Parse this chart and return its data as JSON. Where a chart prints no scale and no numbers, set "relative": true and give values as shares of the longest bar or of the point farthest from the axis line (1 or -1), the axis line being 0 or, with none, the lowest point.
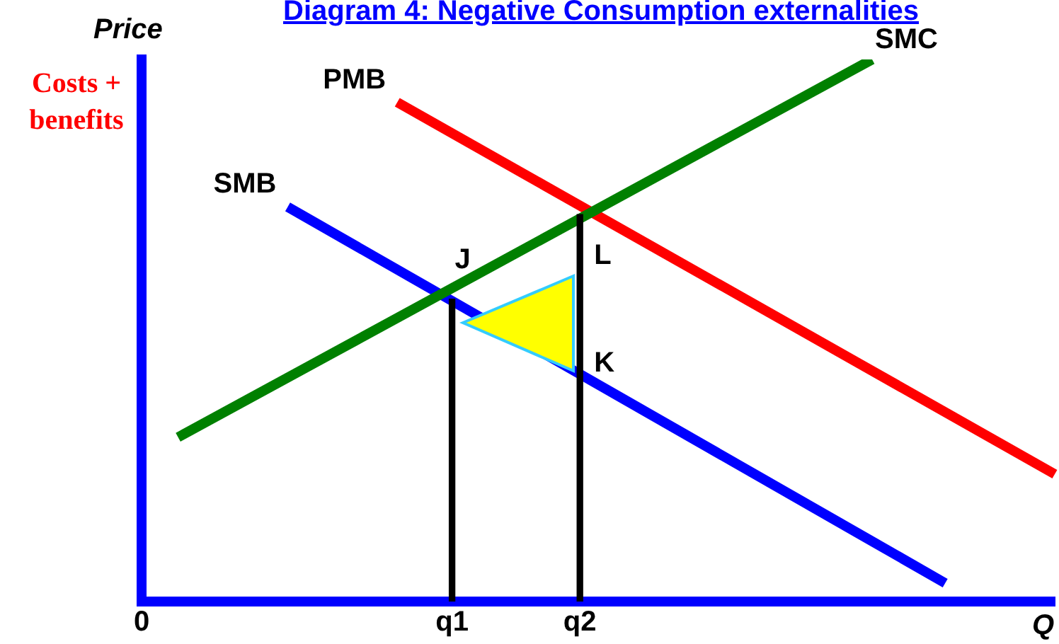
{
  "chart_data": {
    "type": "line",
    "title": "Diagram 4: Negative Consumption externalities",
    "ylabel": "Price",
    "xlabel": "Q",
    "relative": true,
    "legend": false,
    "grid": false,
    "categories": [
      "0",
      null,
      null,
      null,
      null,
      null,
      null,
      null,
      null,
      null,
      null,
      null,
      null,
      null,
      null,
      null,
      null,
      "q1",
      null,
      null,
      null,
      null,
      null,
      null,
      "q2",
      null,
      null,
      null,
      null,
      null,
      null,
      null,
      null,
      null,
      null,
      null,
      null,
      null,
      null,
      null,
      null,
      null,
      null,
      null,
      null,
      null,
      null,
      null,
      null,
      null,
      null
    ],
    "series": [
      {
        "name": "SMC",
        "color": "#008000",
        "values": [
          null,
          null,
          0.303,
          null,
          null,
          null,
          null,
          null,
          null,
          null,
          null,
          null,
          null,
          null,
          null,
          null,
          null,
          null,
          null,
          null,
          null,
          null,
          null,
          null,
          null,
          null,
          null,
          null,
          null,
          null,
          null,
          null,
          null,
          null,
          null,
          null,
          null,
          null,
          null,
          null,
          1,
          null,
          null,
          null,
          null,
          null,
          null,
          null,
          null,
          null,
          null
        ]
      },
      {
        "name": "PMB",
        "color": "#ff0000",
        "values": [
          null,
          null,
          null,
          null,
          null,
          null,
          null,
          null,
          null,
          null,
          null,
          null,
          null,
          null,
          0.921,
          null,
          null,
          null,
          null,
          null,
          null,
          null,
          null,
          null,
          null,
          null,
          null,
          null,
          null,
          null,
          null,
          null,
          null,
          null,
          null,
          null,
          null,
          null,
          null,
          null,
          null,
          null,
          null,
          null,
          null,
          null,
          null,
          null,
          null,
          null,
          0.235
        ]
      },
      {
        "name": "SMB",
        "color": "#0000ff",
        "values": [
          null,
          null,
          null,
          null,
          null,
          null,
          null,
          null,
          0.728,
          null,
          null,
          null,
          null,
          null,
          null,
          null,
          null,
          null,
          null,
          null,
          null,
          null,
          null,
          null,
          null,
          null,
          null,
          null,
          null,
          null,
          null,
          null,
          null,
          null,
          null,
          null,
          null,
          null,
          null,
          null,
          null,
          null,
          null,
          null,
          0.034,
          null,
          null,
          null,
          null,
          null,
          null
        ]
      },
      {
        "type": "bar",
        "color": "#000000",
        "values": [
          null,
          null,
          null,
          null,
          null,
          null,
          null,
          null,
          null,
          null,
          null,
          null,
          null,
          null,
          null,
          null,
          null,
          0.558,
          null,
          null,
          null,
          null,
          null,
          null,
          0.714,
          null,
          null,
          null,
          null,
          null,
          null,
          null,
          null,
          null,
          null,
          null,
          null,
          null,
          null,
          null,
          null,
          null,
          null,
          null,
          null,
          null,
          null,
          null,
          null,
          null,
          null
        ]
      }
    ],
    "annotations": [
      "Costs + benefits",
      {
        "text": "J",
        "x": "q1",
        "y": 0.558
      },
      {
        "text": "L",
        "x": "q2",
        "y": 0.714
      },
      {
        "text": "K",
        "x": "q2",
        "y": 0.411
      }
    ]
  }
}
